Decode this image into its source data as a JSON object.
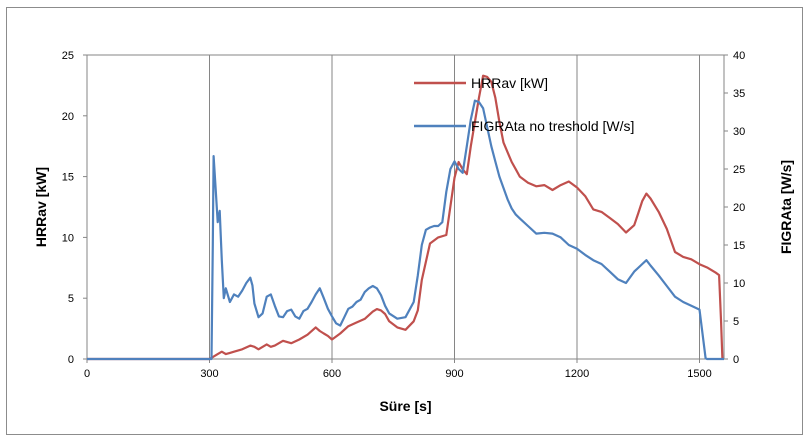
{
  "chart_data": {
    "type": "line",
    "xlabel": "Süre [s]",
    "ylabel": "HRRav [kW]",
    "y2label": "FIGRAta [W/s]",
    "xlim": [
      0,
      1560
    ],
    "ylim": [
      0,
      25
    ],
    "y2lim": [
      0,
      40
    ],
    "xticks": [
      "0",
      "300",
      "600",
      "900",
      "1200",
      "1500"
    ],
    "yticks": [
      "0",
      "5",
      "10",
      "15",
      "20",
      "25"
    ],
    "y2ticks": [
      "0",
      "5",
      "10",
      "15",
      "20",
      "25",
      "30",
      "35",
      "40"
    ],
    "grid": "vertical",
    "legend_position": "top-right",
    "colors": {
      "hrr": "#c0504d",
      "figra": "#4f81bd"
    },
    "series": [
      {
        "name": "HRRav [kW]",
        "axis": "left",
        "color": "#c0504d",
        "x": [
          0,
          300,
          310,
          320,
          330,
          340,
          350,
          360,
          380,
          400,
          410,
          420,
          440,
          450,
          460,
          470,
          480,
          500,
          520,
          540,
          560,
          570,
          580,
          590,
          600,
          620,
          640,
          660,
          680,
          700,
          710,
          720,
          730,
          740,
          760,
          780,
          800,
          810,
          820,
          840,
          860,
          880,
          900,
          910,
          920,
          930,
          940,
          960,
          970,
          980,
          990,
          1000,
          1010,
          1020,
          1030,
          1040,
          1050,
          1060,
          1080,
          1100,
          1120,
          1140,
          1160,
          1180,
          1200,
          1220,
          1240,
          1260,
          1280,
          1300,
          1320,
          1340,
          1350,
          1360,
          1370,
          1380,
          1400,
          1420,
          1440,
          1460,
          1480,
          1500,
          1520,
          1540,
          1548,
          1553,
          1556
        ],
        "y": [
          0,
          0,
          0.2,
          0.4,
          0.6,
          0.4,
          0.5,
          0.6,
          0.8,
          1.1,
          1.0,
          0.8,
          1.2,
          1.0,
          1.1,
          1.3,
          1.5,
          1.3,
          1.6,
          2.0,
          2.6,
          2.3,
          2.1,
          1.9,
          1.6,
          2.1,
          2.7,
          3.0,
          3.3,
          3.9,
          4.1,
          4.0,
          3.7,
          3.1,
          2.6,
          2.4,
          3.1,
          4.0,
          6.5,
          9.5,
          10.0,
          10.2,
          14.9,
          16.2,
          15.6,
          15.2,
          17.5,
          21.5,
          23.3,
          23.2,
          22.8,
          21.5,
          19.5,
          17.8,
          17.0,
          16.2,
          15.6,
          15.0,
          14.5,
          14.2,
          14.3,
          13.9,
          14.3,
          14.6,
          14.1,
          13.4,
          12.3,
          12.1,
          11.6,
          11.1,
          10.4,
          11.0,
          12.0,
          13.0,
          13.6,
          13.2,
          12.1,
          10.7,
          8.8,
          8.4,
          8.2,
          7.8,
          7.5,
          7.1,
          6.9,
          3.0,
          0
        ]
      },
      {
        "name": "FIGRAta no treshold [W/s]",
        "axis": "right",
        "color": "#4f81bd",
        "x": [
          0,
          305,
          308,
          310,
          315,
          320,
          325,
          330,
          335,
          340,
          350,
          360,
          370,
          380,
          390,
          400,
          405,
          410,
          420,
          430,
          440,
          450,
          460,
          470,
          480,
          490,
          500,
          510,
          520,
          530,
          540,
          550,
          560,
          570,
          580,
          590,
          600,
          610,
          620,
          630,
          640,
          650,
          660,
          670,
          680,
          690,
          700,
          710,
          720,
          730,
          740,
          760,
          780,
          800,
          810,
          820,
          830,
          840,
          850,
          860,
          870,
          880,
          890,
          900,
          910,
          920,
          930,
          940,
          950,
          960,
          970,
          980,
          990,
          1000,
          1010,
          1020,
          1030,
          1040,
          1050,
          1060,
          1080,
          1100,
          1120,
          1140,
          1160,
          1180,
          1200,
          1220,
          1240,
          1260,
          1280,
          1300,
          1320,
          1340,
          1360,
          1370,
          1380,
          1400,
          1420,
          1440,
          1460,
          1480,
          1500,
          1515,
          1518,
          1520,
          1560
        ],
        "y": [
          0,
          0,
          15,
          26.7,
          22.5,
          18.0,
          19.5,
          13.0,
          8.0,
          9.3,
          7.5,
          8.5,
          8.2,
          9.0,
          10.0,
          10.7,
          9.7,
          7.3,
          5.5,
          6.0,
          8.2,
          8.5,
          7.0,
          5.6,
          5.5,
          6.3,
          6.5,
          5.6,
          5.3,
          6.3,
          6.6,
          7.5,
          8.5,
          9.3,
          8.0,
          6.6,
          5.6,
          4.7,
          4.4,
          5.5,
          6.6,
          6.9,
          7.5,
          7.8,
          8.8,
          9.3,
          9.6,
          9.3,
          8.4,
          7.0,
          6.0,
          5.3,
          5.5,
          7.5,
          11.0,
          15.0,
          17.0,
          17.3,
          17.5,
          17.5,
          18.0,
          22.0,
          25.0,
          26.0,
          25.0,
          24.5,
          28.0,
          31.5,
          34.0,
          33.8,
          33.0,
          30.5,
          28.0,
          26.0,
          24.0,
          22.5,
          21.0,
          19.8,
          19.0,
          18.5,
          17.5,
          16.5,
          16.6,
          16.5,
          16.0,
          15.0,
          14.5,
          13.7,
          13.0,
          12.5,
          11.5,
          10.5,
          10.0,
          11.5,
          12.5,
          13.0,
          12.3,
          11.0,
          9.6,
          8.2,
          7.5,
          7.0,
          6.5,
          0.1,
          0,
          0,
          0
        ]
      }
    ]
  }
}
